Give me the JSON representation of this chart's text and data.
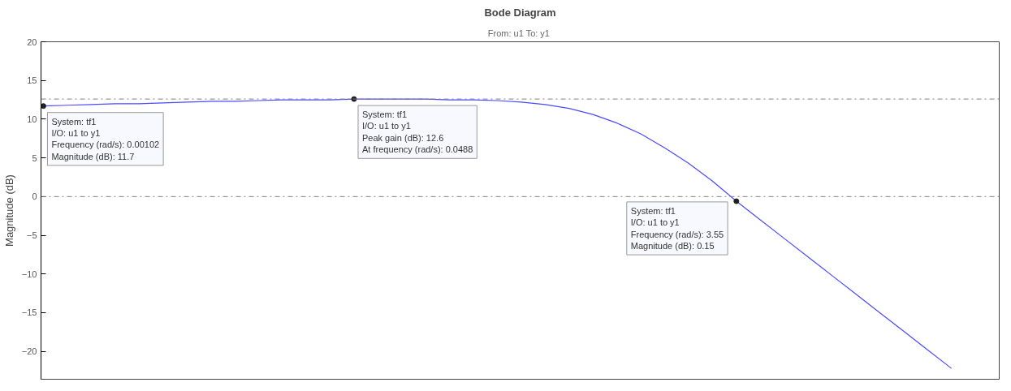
{
  "chart_data": {
    "type": "line",
    "title": "Bode Diagram",
    "subtitle": "From: u1  To: y1",
    "ylabel": "Magnitude (dB)",
    "categories": [
      null,
      null,
      null,
      null,
      null,
      null,
      null,
      null,
      null,
      null,
      null,
      null,
      null,
      null,
      null,
      null,
      null,
      null,
      null,
      null,
      null,
      null,
      null,
      null,
      null,
      null,
      null,
      null,
      null,
      null,
      null,
      null,
      null,
      null,
      null,
      null,
      null,
      null,
      null,
      null,
      null
    ],
    "series": [
      {
        "color": "#4a4aff",
        "values": [
          11.7,
          11.8,
          11.9,
          12.0,
          12.0,
          12.1,
          12.2,
          12.3,
          12.3,
          12.4,
          12.5,
          12.5,
          12.5,
          12.6,
          12.6,
          12.6,
          12.6,
          12.5,
          12.5,
          12.4,
          12.2,
          11.9,
          11.4,
          10.6,
          9.5,
          8.1,
          6.3,
          4.3,
          2.0,
          -0.6,
          -3.0,
          -5.4,
          -7.8,
          -10.2,
          -12.6,
          -15.0,
          -17.4,
          -19.8,
          -22.2,
          null,
          null
        ]
      }
    ],
    "ylim": [
      -23.6,
      20
    ],
    "yticks": [
      -20,
      -15,
      -10,
      -5,
      0,
      5,
      10,
      15,
      20
    ],
    "ref_lines": [
      {
        "axis": "y",
        "value": 12.6,
        "color": "#808080",
        "line_style": "dashed"
      },
      {
        "axis": "y",
        "value": 0,
        "color": "#808080",
        "line_style": "dashed"
      }
    ],
    "annotations": [
      {
        "text": "System: tf1\nI/O: u1 to y1\nFrequency (rad/s): 0.00102\nMagnitude (dB): 11.7",
        "y": 11.7
      },
      {
        "text": "System: tf1\nI/O: u1 to y1\nPeak gain (dB): 12.6\nAt frequency (rad/s): 0.0488",
        "y": 12.6
      },
      {
        "text": "System: tf1\nI/O: u1 to y1\nFrequency (rad/s): 3.55\nMagnitude (dB): 0.15",
        "y": 0.15
      }
    ],
    "tick_labels": "y",
    "grid": false,
    "line_style": "solid",
    "marker": "none"
  }
}
